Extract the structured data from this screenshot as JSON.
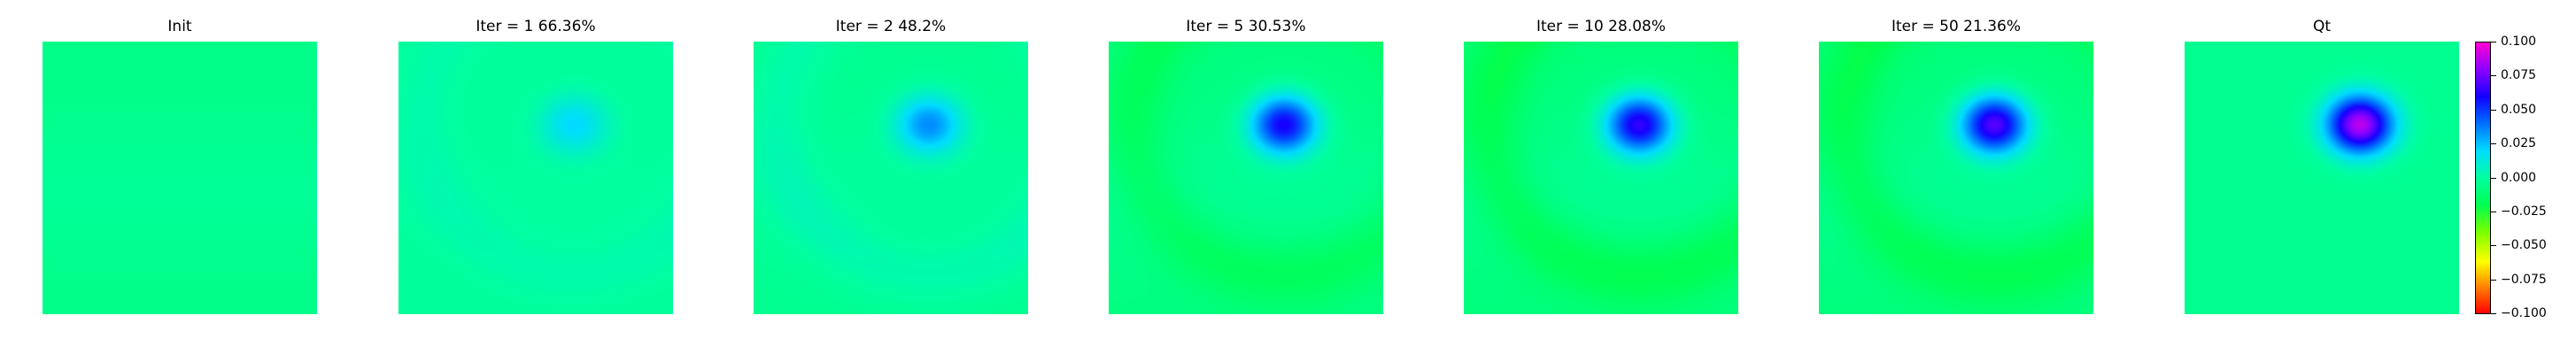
{
  "chart_data": {
    "type": "heatmap",
    "colormap": "gist_rainbow_r",
    "vmin": -0.1,
    "vmax": 0.1,
    "panels": [
      {
        "title": "Init",
        "peak_value": 0.0,
        "ring_value": 0.0,
        "baseline": -0.006
      },
      {
        "title": "Iter = 1    66.36%",
        "peak_value": 0.022,
        "ring_value": 0.004,
        "baseline": -0.002
      },
      {
        "title": "Iter = 2    48.2%",
        "peak_value": 0.038,
        "ring_value": 0.006,
        "baseline": -0.004
      },
      {
        "title": "Iter = 5    30.53%",
        "peak_value": 0.067,
        "ring_value": -0.01,
        "baseline": -0.008
      },
      {
        "title": "Iter = 10    28.08%",
        "peak_value": 0.072,
        "ring_value": -0.012,
        "baseline": -0.009
      },
      {
        "title": "Iter = 50    21.36%",
        "peak_value": 0.078,
        "ring_value": -0.012,
        "baseline": -0.009
      },
      {
        "title": "Qt",
        "peak_value": 0.092,
        "ring_value": 0.0,
        "baseline": -0.004
      }
    ],
    "colorbar": {
      "ticks": [
        "0.100",
        "0.075",
        "0.050",
        "0.025",
        "0.000",
        "−0.025",
        "−0.050",
        "−0.075",
        "−0.100"
      ]
    }
  }
}
